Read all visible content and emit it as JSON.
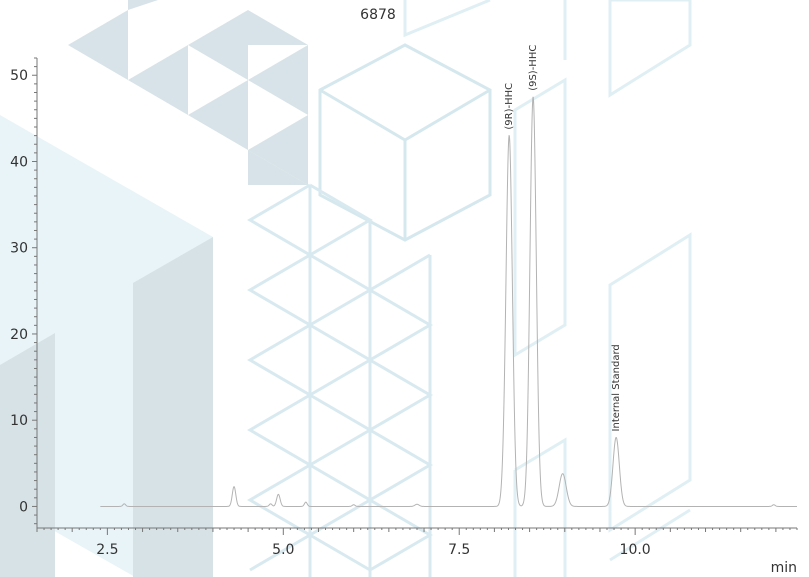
{
  "chart_data": {
    "type": "line",
    "title": "6878",
    "xlabel": "min",
    "ylabel": "",
    "xlim": [
      1.5,
      12.3
    ],
    "ylim": [
      -2.5,
      52
    ],
    "x_ticks": [
      2.5,
      5.0,
      7.5,
      10.0
    ],
    "y_ticks": [
      0,
      10,
      20,
      30,
      40,
      50
    ],
    "grid": false,
    "colors": {
      "trace": "#b3b3b3",
      "axis": "#777777",
      "text": "#333333"
    },
    "series": [
      {
        "baseline": 0,
        "peaks": [
          {
            "rt": 2.74,
            "height": 0.3,
            "width": 0.02
          },
          {
            "rt": 4.3,
            "height": 2.3,
            "width": 0.025
          },
          {
            "rt": 4.82,
            "height": 0.3,
            "width": 0.02
          },
          {
            "rt": 4.93,
            "height": 1.4,
            "width": 0.025
          },
          {
            "rt": 5.32,
            "height": 0.5,
            "width": 0.02
          },
          {
            "rt": 6.0,
            "height": 0.2,
            "width": 0.02
          },
          {
            "rt": 6.9,
            "height": 0.25,
            "width": 0.03
          },
          {
            "rt": 8.13,
            "height": 1.0,
            "width": 0.03
          },
          {
            "rt": 8.21,
            "height": 43.0,
            "width": 0.045
          },
          {
            "rt": 8.55,
            "height": 47.5,
            "width": 0.045
          },
          {
            "rt": 8.97,
            "height": 3.8,
            "width": 0.05
          },
          {
            "rt": 9.73,
            "height": 8.0,
            "width": 0.045
          },
          {
            "rt": 11.97,
            "height": 0.2,
            "width": 0.02
          }
        ]
      }
    ],
    "annotations": [
      {
        "text": "(9R)-HHC",
        "x": 8.21,
        "y": 43.0
      },
      {
        "text": "(9S)-HHC",
        "x": 8.55,
        "y": 47.5
      },
      {
        "text": "Internal Standard",
        "x": 9.73,
        "y": 8.0
      }
    ]
  }
}
